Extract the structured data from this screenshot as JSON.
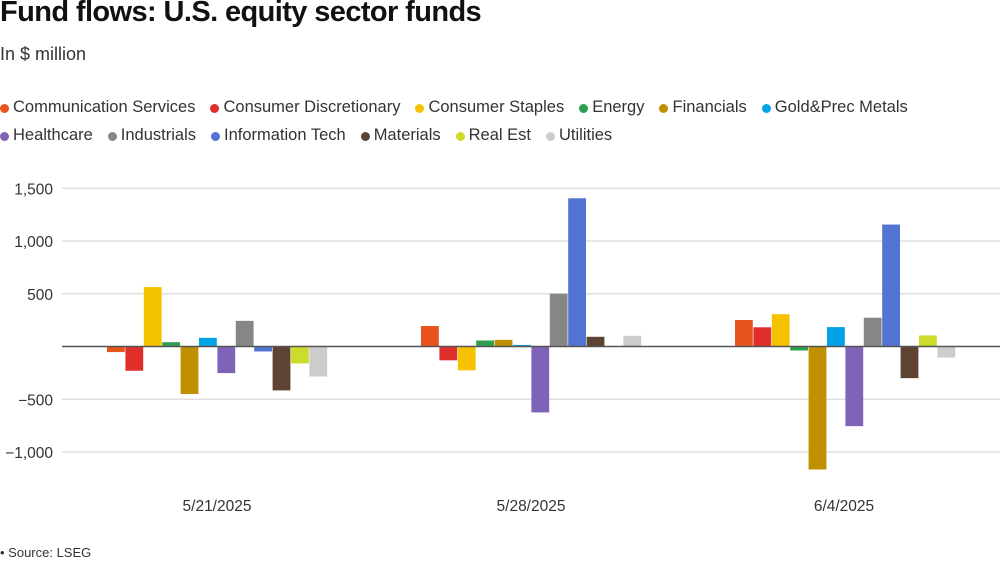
{
  "title": "Fund flows: U.S. equity sector funds",
  "subtitle": "In $ million",
  "source": "• Source: LSEG",
  "chart_data": {
    "type": "bar",
    "title": "Fund flows: U.S. equity sector funds",
    "subtitle": "In $ million",
    "xlabel": "",
    "ylabel": "",
    "ylim": [
      -1250,
      1600
    ],
    "yticks": [
      1500,
      1000,
      500,
      -500,
      -1000
    ],
    "ytick_labels": [
      "1,500",
      "1,000",
      "500",
      "−500",
      "−1,000"
    ],
    "grid": true,
    "legend_position": "top-left",
    "categories": [
      "5/21/2025",
      "5/28/2025",
      "6/4/2025"
    ],
    "series": [
      {
        "name": "Communication Services",
        "color": "#e8541c",
        "values": [
          -53,
          194,
          251
        ]
      },
      {
        "name": "Consumer Discretionary",
        "color": "#e02e2b",
        "values": [
          -230,
          -131,
          182
        ]
      },
      {
        "name": "Consumer Staples",
        "color": "#f5c200",
        "values": [
          563,
          -226,
          306
        ]
      },
      {
        "name": "Energy",
        "color": "#2e9f50",
        "values": [
          41,
          57,
          -38
        ]
      },
      {
        "name": "Financials",
        "color": "#c09000",
        "values": [
          -450,
          63,
          -1166
        ]
      },
      {
        "name": "Gold&Prec Metals",
        "color": "#00a2e8",
        "values": [
          82,
          15,
          184
        ]
      },
      {
        "name": "Healthcare",
        "color": "#7f63b8",
        "values": [
          -252,
          -625,
          -755
        ]
      },
      {
        "name": "Industrials",
        "color": "#868686",
        "values": [
          243,
          500,
          273
        ]
      },
      {
        "name": "Information Tech",
        "color": "#5173d1",
        "values": [
          -47,
          1405,
          1156
        ]
      },
      {
        "name": "Materials",
        "color": "#5e4332",
        "values": [
          -416,
          92,
          -300
        ]
      },
      {
        "name": "Real Est",
        "color": "#cddc2b",
        "values": [
          -161,
          0,
          105
        ]
      },
      {
        "name": "Utilities",
        "color": "#cccccc",
        "values": [
          -284,
          101,
          -105
        ]
      }
    ]
  }
}
